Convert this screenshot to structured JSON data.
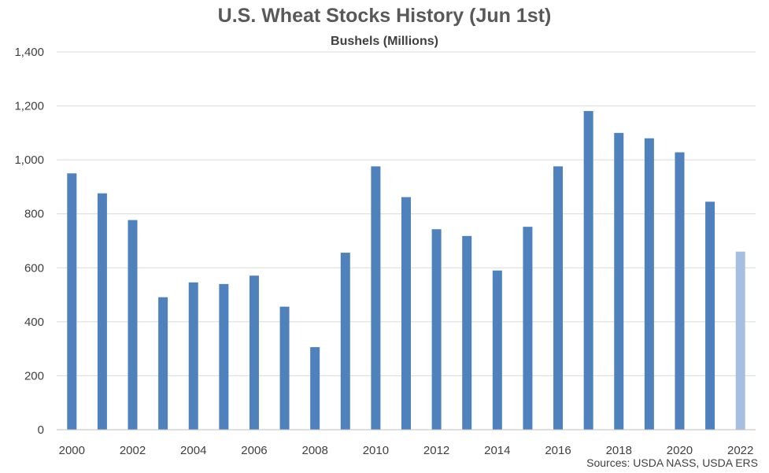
{
  "chart_data": {
    "type": "bar",
    "title": "U.S. Wheat Stocks History (Jun 1st)",
    "subtitle": "Bushels (Millions)",
    "source": "Sources: USDA NASS, USDA ERS",
    "categories": [
      "2000",
      "2001",
      "2002",
      "2003",
      "2004",
      "2005",
      "2006",
      "2007",
      "2008",
      "2009",
      "2010",
      "2011",
      "2012",
      "2013",
      "2014",
      "2015",
      "2016",
      "2017",
      "2018",
      "2019",
      "2020",
      "2021",
      "2022"
    ],
    "values": [
      950,
      876,
      777,
      491,
      546,
      540,
      571,
      456,
      306,
      656,
      976,
      862,
      743,
      718,
      590,
      752,
      976,
      1181,
      1100,
      1080,
      1028,
      845,
      660
    ],
    "x_tick_labels": [
      "2000",
      "2002",
      "2004",
      "2006",
      "2008",
      "2010",
      "2012",
      "2014",
      "2016",
      "2018",
      "2020",
      "2022"
    ],
    "y_ticks": [
      0,
      200,
      400,
      600,
      800,
      1000,
      1200,
      1400
    ],
    "y_tick_labels": [
      "0",
      "200",
      "400",
      "600",
      "800",
      "1,000",
      "1,200",
      "1,400"
    ],
    "ylim": [
      0,
      1400
    ],
    "xlabel": "",
    "ylabel": "",
    "grid": true,
    "colors": {
      "bar": "#4f81bd",
      "highlight_bar": "#a7bfdf",
      "grid": "#d9d9d9",
      "axis": "#bfbfbf"
    },
    "highlight_category": "2022"
  }
}
